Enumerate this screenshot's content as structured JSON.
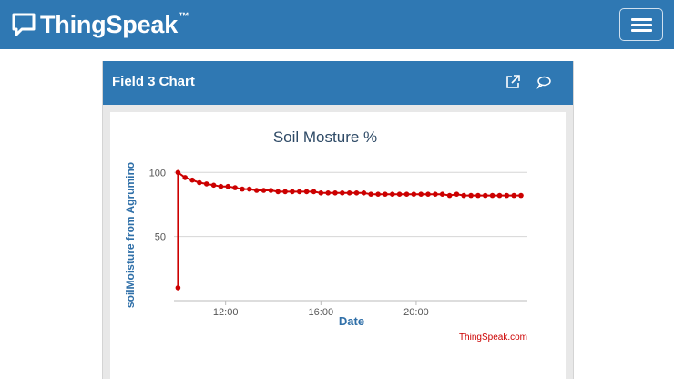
{
  "header": {
    "brand_name": "ThingSpeak",
    "brand_tm": "™",
    "brand_color": "#2f78b3",
    "icons": {
      "logo": "speech-bubble-icon",
      "menu": "hamburger-menu-icon"
    }
  },
  "panel": {
    "title": "Field 3 Chart",
    "icons": {
      "open": "external-link-icon",
      "comment": "comment-icon"
    }
  },
  "chart_data": {
    "type": "line",
    "title": "Soil Mosture %",
    "xlabel": "Date",
    "ylabel": "soilMoisture from Agrumino",
    "credit": "ThingSpeak.com",
    "line_color": "#cc0000",
    "grid": true,
    "x_ticks": [
      "12:00",
      "16:00",
      "20:00"
    ],
    "y_ticks": [
      50,
      100
    ],
    "xlim": [
      "09:50",
      "24:40"
    ],
    "ylim": [
      0,
      108
    ],
    "series": [
      {
        "x": [
          "10:00",
          "10:00",
          "10:18",
          "10:36",
          "10:54",
          "11:12",
          "11:30",
          "11:48",
          "12:06",
          "12:24",
          "12:42",
          "13:00",
          "13:18",
          "13:36",
          "13:54",
          "14:12",
          "14:30",
          "14:48",
          "15:06",
          "15:24",
          "15:42",
          "16:00",
          "16:18",
          "16:36",
          "16:54",
          "17:12",
          "17:30",
          "17:48",
          "18:06",
          "18:24",
          "18:42",
          "19:00",
          "19:18",
          "19:36",
          "19:54",
          "20:12",
          "20:30",
          "20:48",
          "21:06",
          "21:24",
          "21:42",
          "22:00",
          "22:18",
          "22:36",
          "22:54",
          "23:12",
          "23:30",
          "23:48",
          "24:06",
          "24:24"
        ],
        "y": [
          10,
          100,
          96,
          94,
          92,
          91,
          90,
          89,
          89,
          88,
          87,
          87,
          86,
          86,
          86,
          85,
          85,
          85,
          85,
          85,
          85,
          84,
          84,
          84,
          84,
          84,
          84,
          84,
          83,
          83,
          83,
          83,
          83,
          83,
          83,
          83,
          83,
          83,
          83,
          82,
          83,
          82,
          82,
          82,
          82,
          82,
          82,
          82,
          82,
          82
        ]
      }
    ]
  }
}
